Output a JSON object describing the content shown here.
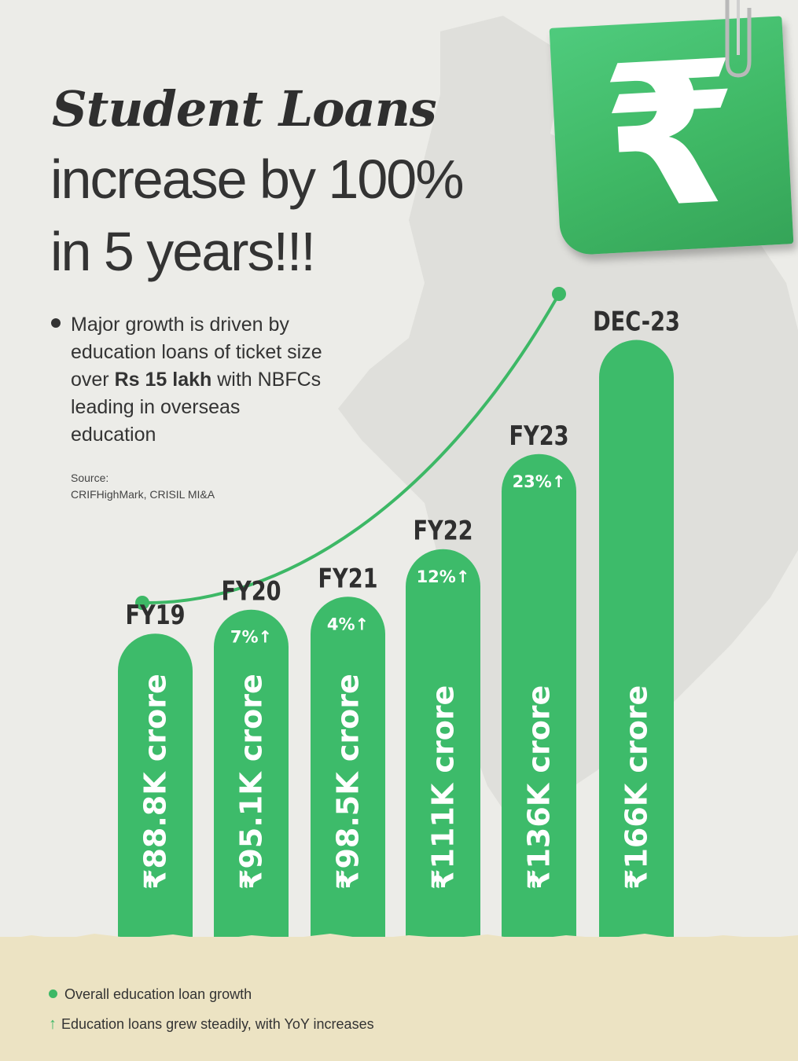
{
  "title": {
    "line1": "Student Loans",
    "line2": "increase by 100%",
    "line3": "in 5 years!!!"
  },
  "note": {
    "text_before": "Major growth is driven by education loans of ticket size over ",
    "bold": "Rs 15 lakh",
    "text_after": " with NBFCs leading in overseas education"
  },
  "source": {
    "label": "Source:",
    "text": "CRIFHighMark, CRISIL MI&A"
  },
  "badge": {
    "symbol": "₹"
  },
  "legend": {
    "growth_label": "Overall education loan growth",
    "yoy_label": "Education loans grew steadily, with YoY increases",
    "yoy_icon": "↑"
  },
  "colors": {
    "bar": "#3dbb6a",
    "accent": "#3db866",
    "text": "#2f2f2f",
    "background": "#ecece8",
    "ground": "#ece3c3"
  },
  "chart_data": {
    "type": "bar",
    "categories": [
      "FY19",
      "FY20",
      "FY21",
      "FY22",
      "FY23",
      "DEC-23"
    ],
    "values": [
      88.8,
      95.1,
      98.5,
      111,
      136,
      166
    ],
    "value_labels": [
      "₹88.8K crore",
      "₹95.1K crore",
      "₹98.5K crore",
      "₹111K crore",
      "₹136K crore",
      "₹166K crore"
    ],
    "yoy_labels": [
      "",
      "7%↑",
      "4%↑",
      "12%↑",
      "23%↑",
      ""
    ],
    "unit": "K crore"
  }
}
